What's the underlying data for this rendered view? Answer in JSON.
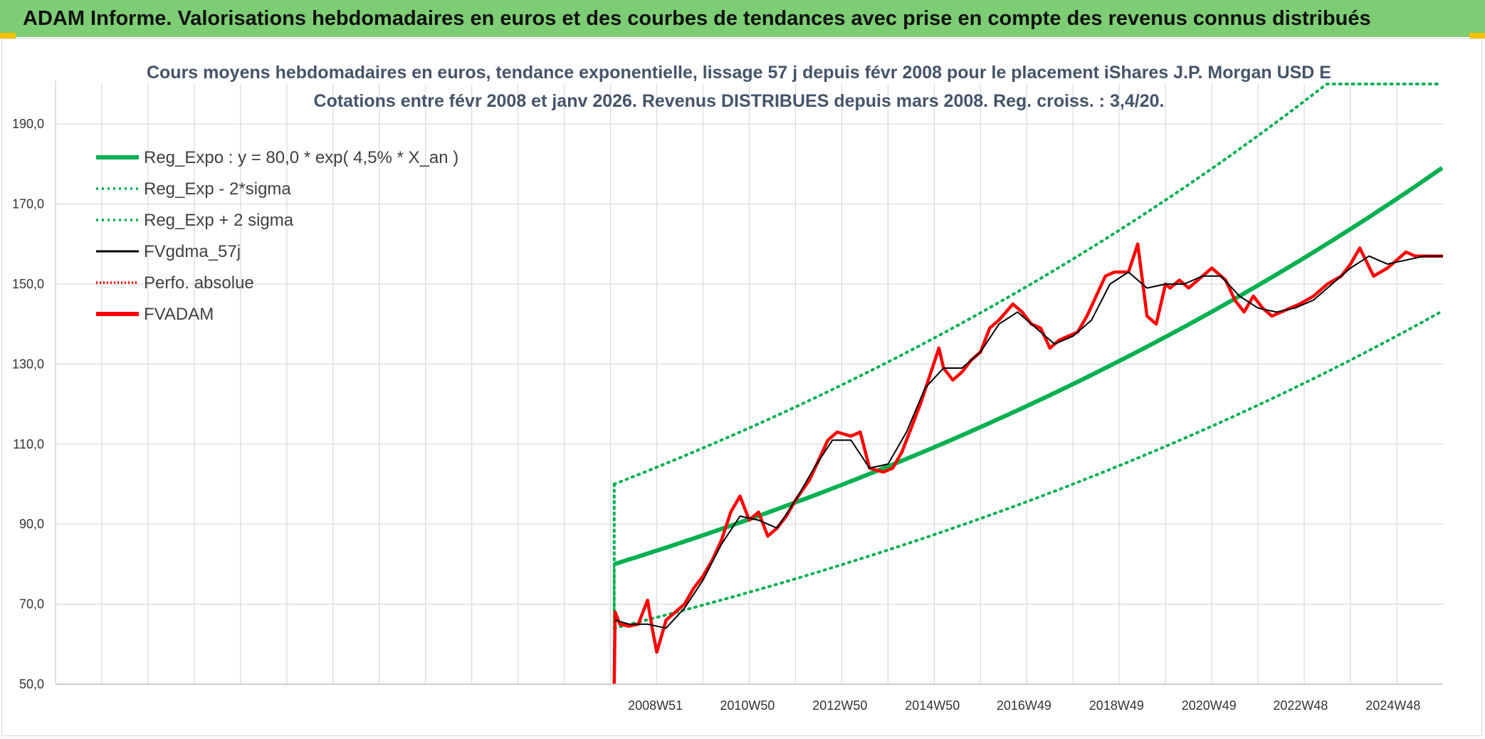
{
  "banner": {
    "title": "ADAM Informe. Valorisations hebdomadaires en euros et des courbes de tendances avec prise en compte des revenus connus distribués"
  },
  "colors": {
    "banner": "#7ccd73",
    "trend": "#00b050",
    "price": "#ff0000",
    "smooth": "#000000",
    "grid": "#d9d9d9",
    "title": "#44546a"
  },
  "chart_data": {
    "type": "line",
    "title": "Cours moyens hebdomadaires en euros, tendance exponentielle, lissage 57 j depuis févr 2008 pour le placement iShares J.P. Morgan USD E",
    "subtitle": "Cotations entre févr 2008 et janv 2026. Revenus DISTRIBUES depuis mars 2008. Reg. croiss. : 3,4/20.",
    "ylim": [
      50,
      200
    ],
    "xlim": [
      1996.0,
      2026.0
    ],
    "y_ticks": [
      "50,0",
      "70,0",
      "90,0",
      "110,0",
      "130,0",
      "150,0",
      "170,0",
      "190,0"
    ],
    "y_tick_values": [
      50,
      70,
      90,
      110,
      130,
      150,
      170,
      190
    ],
    "x_ticks": [
      "2008W51",
      "2010W50",
      "2012W50",
      "2014W50",
      "2016W49",
      "2018W49",
      "2020W49",
      "2022W48",
      "2024W48"
    ],
    "x_tick_values": [
      2008.97,
      2010.96,
      2012.96,
      2014.96,
      2016.94,
      2018.94,
      2020.94,
      2022.92,
      2024.92
    ],
    "grid": true,
    "legend_position": "top-left",
    "legend": [
      {
        "label": "Reg_Expo : y = 80,0 * exp( 4,5% *  X_an )",
        "color": "#00b050",
        "style": "solid-thick"
      },
      {
        "label": "Reg_Exp - 2*sigma",
        "color": "#00b050",
        "style": "dotted"
      },
      {
        "label": "Reg_Exp + 2 sigma",
        "color": "#00b050",
        "style": "dotted"
      },
      {
        "label": "FVgdma_57j",
        "color": "#000000",
        "style": "solid-thin"
      },
      {
        "label": "Perfo. absolue",
        "color": "#ff0000",
        "style": "dotted"
      },
      {
        "label": "FVADAM",
        "color": "#ff0000",
        "style": "solid-thick"
      }
    ],
    "trend": {
      "start": 2008.08,
      "end": 2026.0,
      "base": 80.0,
      "rate": 0.045,
      "lower_factor": 0.8,
      "upper_factor": 1.25
    },
    "series": [
      {
        "name": "FVADAM",
        "x": [
          2008.08,
          2008.1,
          2008.2,
          2008.4,
          2008.6,
          2008.8,
          2008.9,
          2009.0,
          2009.1,
          2009.2,
          2009.4,
          2009.6,
          2009.8,
          2010.0,
          2010.2,
          2010.4,
          2010.6,
          2010.8,
          2011.0,
          2011.2,
          2011.4,
          2011.6,
          2011.8,
          2012.0,
          2012.3,
          2012.5,
          2012.7,
          2012.9,
          2013.2,
          2013.4,
          2013.6,
          2013.9,
          2014.1,
          2014.3,
          2014.5,
          2014.7,
          2014.9,
          2015.1,
          2015.2,
          2015.4,
          2015.6,
          2015.8,
          2016.0,
          2016.2,
          2016.4,
          2016.7,
          2016.9,
          2017.1,
          2017.3,
          2017.5,
          2017.7,
          2017.9,
          2018.1,
          2018.3,
          2018.5,
          2018.7,
          2018.9,
          2019.2,
          2019.4,
          2019.6,
          2019.8,
          2020.0,
          2020.1,
          2020.2,
          2020.3,
          2020.5,
          2020.8,
          2021.0,
          2021.3,
          2021.5,
          2021.7,
          2021.9,
          2022.1,
          2022.3,
          2022.5,
          2022.7,
          2022.9,
          2023.2,
          2023.5,
          2023.8,
          2024.0,
          2024.2,
          2024.5,
          2024.8,
          2025.0,
          2025.2,
          2025.4,
          2025.6,
          2025.8,
          2026.0
        ],
        "values": [
          50,
          68,
          65,
          64.5,
          65,
          71,
          64,
          58,
          62,
          66,
          68,
          70,
          74,
          77,
          81,
          86,
          93,
          97,
          91,
          93,
          87,
          89,
          92,
          96,
          101,
          106,
          111,
          113,
          112,
          113,
          104,
          103,
          104,
          108,
          114,
          120,
          127,
          134,
          129,
          126,
          128,
          131,
          133,
          139,
          141,
          145,
          143,
          140,
          139,
          134,
          136,
          137,
          138,
          142,
          147,
          152,
          153,
          153,
          160,
          142,
          140,
          150,
          149,
          150,
          151,
          149,
          152,
          154,
          151,
          146,
          143,
          147,
          144,
          142,
          143,
          144,
          145,
          147,
          150,
          152,
          155,
          159,
          152,
          154,
          156,
          158,
          157,
          157,
          157,
          157
        ],
        "color": "#ff0000"
      },
      {
        "name": "FVgdma_57j",
        "x": [
          2008.1,
          2008.4,
          2008.8,
          2009.2,
          2009.6,
          2010.0,
          2010.4,
          2010.8,
          2011.2,
          2011.6,
          2012.0,
          2012.4,
          2012.8,
          2013.2,
          2013.6,
          2014.0,
          2014.4,
          2014.8,
          2015.2,
          2015.6,
          2016.0,
          2016.4,
          2016.8,
          2017.2,
          2017.6,
          2018.0,
          2018.4,
          2018.8,
          2019.2,
          2019.6,
          2020.0,
          2020.4,
          2020.8,
          2021.2,
          2021.6,
          2022.0,
          2022.4,
          2022.8,
          2023.2,
          2023.6,
          2024.0,
          2024.4,
          2024.8,
          2025.2,
          2025.6,
          2026.0
        ],
        "values": [
          66,
          65,
          65,
          64,
          69,
          76,
          85,
          92,
          91,
          89,
          96,
          104,
          111,
          111,
          104,
          105,
          113,
          124,
          129,
          129,
          133,
          140,
          143,
          139,
          135,
          137,
          141,
          150,
          153,
          149,
          150,
          150,
          152,
          152,
          147,
          144,
          143,
          144,
          146,
          150,
          154,
          157,
          155,
          156,
          157,
          157
        ],
        "color": "#000000"
      }
    ]
  }
}
